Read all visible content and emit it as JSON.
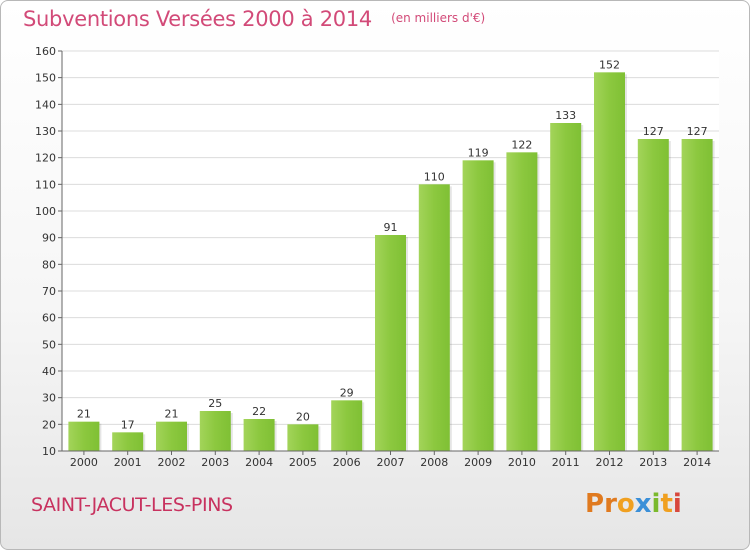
{
  "chart_data": {
    "type": "bar",
    "title": "Subventions Versées 2000 à 2014",
    "subtitle": "(en milliers d'€)",
    "categories": [
      "2000",
      "2001",
      "2002",
      "2003",
      "2004",
      "2005",
      "2006",
      "2007",
      "2008",
      "2009",
      "2010",
      "2011",
      "2012",
      "2013",
      "2014"
    ],
    "values": [
      21,
      17,
      21,
      25,
      22,
      20,
      29,
      91,
      110,
      119,
      122,
      133,
      152,
      127,
      127
    ],
    "ylim": [
      10,
      160
    ],
    "yticks": [
      "10",
      "20",
      "30",
      "40",
      "50",
      "60",
      "70",
      "80",
      "90",
      "100",
      "110",
      "120",
      "130",
      "140",
      "150",
      "160"
    ],
    "xlabel": "",
    "ylabel": "",
    "grid": "horizontal",
    "bar_color": "#7fc034",
    "bar_color_top": "#a3d45a",
    "label_color": "#333333"
  },
  "footer": {
    "commune": "SAINT-JACUT-LES-PINS",
    "logo_letters": [
      "P",
      "r",
      "o",
      "x",
      "i",
      "t",
      "i"
    ],
    "logo_colors": [
      "#e07a1f",
      "#e07a1f",
      "#f0a020",
      "#3a8fd8",
      "#7ab92c",
      "#f0a020",
      "#d8483c"
    ]
  }
}
